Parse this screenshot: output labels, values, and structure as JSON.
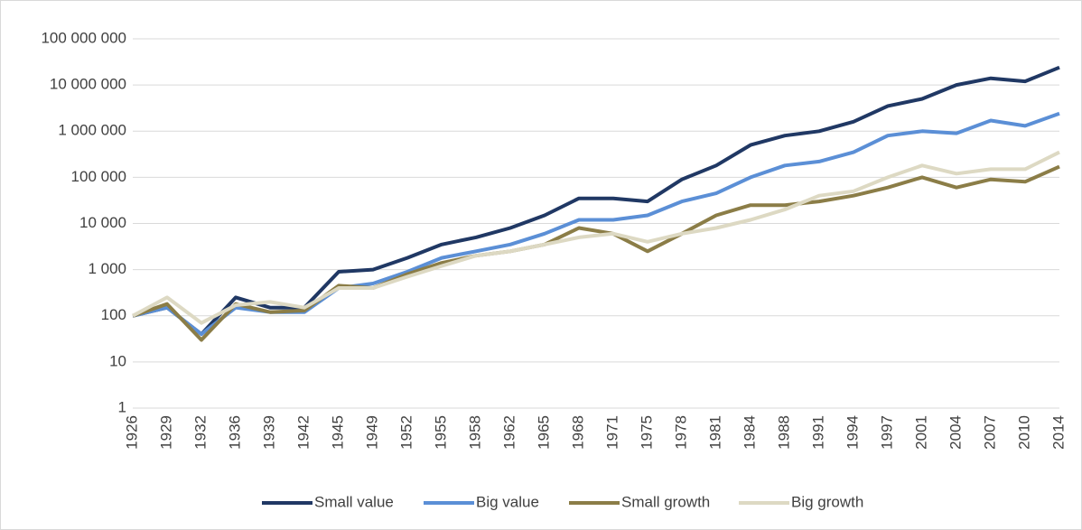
{
  "chart_data": {
    "type": "line",
    "log_scale": true,
    "grid": true,
    "legend": "bottom",
    "categories": [
      "1926",
      "1929",
      "1932",
      "1936",
      "1939",
      "1942",
      "1945",
      "1949",
      "1952",
      "1955",
      "1958",
      "1962",
      "1965",
      "1968",
      "1971",
      "1975",
      "1978",
      "1981",
      "1984",
      "1988",
      "1991",
      "1994",
      "1997",
      "2001",
      "2004",
      "2007",
      "2010",
      "2014"
    ],
    "series": [
      {
        "name": "Small value",
        "color": "#203864",
        "values": [
          100,
          150,
          40,
          250,
          150,
          150,
          900,
          1000,
          1800,
          3500,
          5000,
          8000,
          15000,
          35000,
          35000,
          30000,
          90000,
          180000,
          500000,
          800000,
          1000000,
          1600000,
          3500000,
          5000000,
          10000000,
          14000000,
          12000000,
          24000000
        ]
      },
      {
        "name": "Big value",
        "color": "#5b8fd6",
        "values": [
          100,
          150,
          40,
          150,
          120,
          120,
          400,
          500,
          900,
          1800,
          2500,
          3500,
          6000,
          12000,
          12000,
          15000,
          30000,
          45000,
          100000,
          180000,
          220000,
          350000,
          800000,
          1000000,
          900000,
          1700000,
          1300000,
          2400000
        ]
      },
      {
        "name": "Small growth",
        "color": "#8b7d47",
        "values": [
          100,
          180,
          30,
          180,
          120,
          130,
          450,
          400,
          800,
          1400,
          2000,
          2500,
          3500,
          8000,
          6000,
          2500,
          6000,
          15000,
          25000,
          25000,
          30000,
          40000,
          60000,
          100000,
          60000,
          90000,
          80000,
          170000
        ]
      },
      {
        "name": "Big growth",
        "color": "#ddd9c3",
        "values": [
          100,
          250,
          70,
          170,
          200,
          150,
          400,
          400,
          700,
          1200,
          2000,
          2500,
          3500,
          5000,
          6000,
          4000,
          6000,
          8000,
          12000,
          20000,
          40000,
          50000,
          100000,
          180000,
          120000,
          150000,
          150000,
          350000
        ]
      }
    ],
    "ylim": [
      1,
      100000000
    ],
    "yticks": [
      1,
      10,
      100,
      {
        "value": 1000,
        "label": "1 000"
      },
      {
        "value": 10000,
        "label": "10 000"
      },
      {
        "value": 100000,
        "label": "100 000"
      },
      {
        "value": 1000000,
        "label": "1 000 000"
      },
      {
        "value": 10000000,
        "label": "10 000 000"
      },
      {
        "value": 100000000,
        "label": "100 000 000"
      }
    ]
  }
}
